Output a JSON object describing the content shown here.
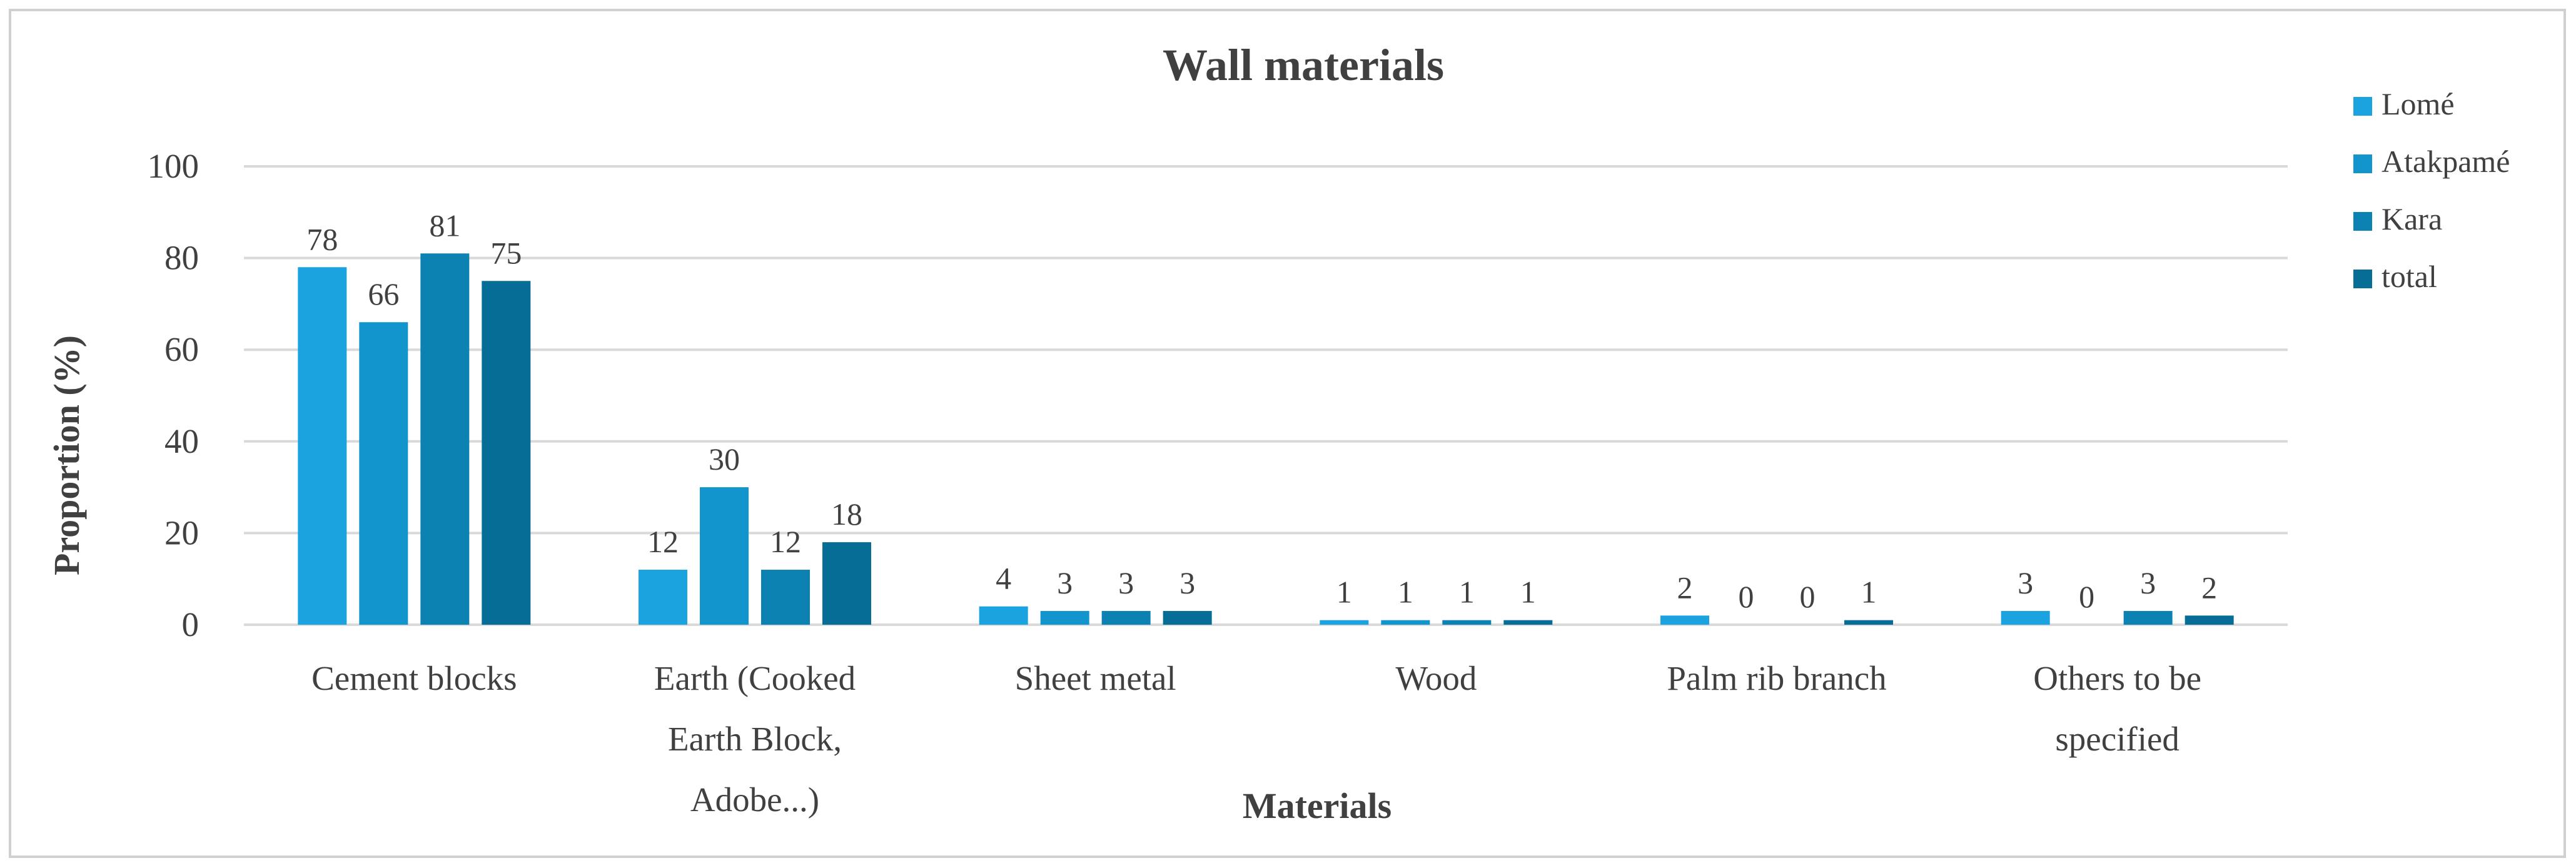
{
  "chart_data": {
    "type": "bar",
    "title": "Wall materials",
    "xlabel": "Materials",
    "ylabel": "Proportion (%)",
    "ylim": [
      0,
      100
    ],
    "yticks": [
      0,
      20,
      40,
      60,
      80,
      100
    ],
    "grid": true,
    "legend_position": "right",
    "categories": [
      [
        "Cement blocks"
      ],
      [
        "Earth (Cooked",
        "Earth Block,",
        "Adobe...)"
      ],
      [
        "Sheet metal"
      ],
      [
        "Wood"
      ],
      [
        "Palm rib branch"
      ],
      [
        "Others to be",
        "specified"
      ]
    ],
    "series": [
      {
        "name": "Lomé",
        "color": "#1aa3de",
        "values": [
          78,
          12,
          4,
          1,
          2,
          3
        ]
      },
      {
        "name": "Atakpamé",
        "color": "#1294cc",
        "values": [
          66,
          30,
          3,
          1,
          0,
          0
        ]
      },
      {
        "name": "Kara",
        "color": "#0b82b2",
        "values": [
          81,
          12,
          3,
          1,
          0,
          3
        ]
      },
      {
        "name": "total",
        "color": "#066d96",
        "values": [
          75,
          18,
          3,
          1,
          1,
          2
        ]
      }
    ]
  }
}
